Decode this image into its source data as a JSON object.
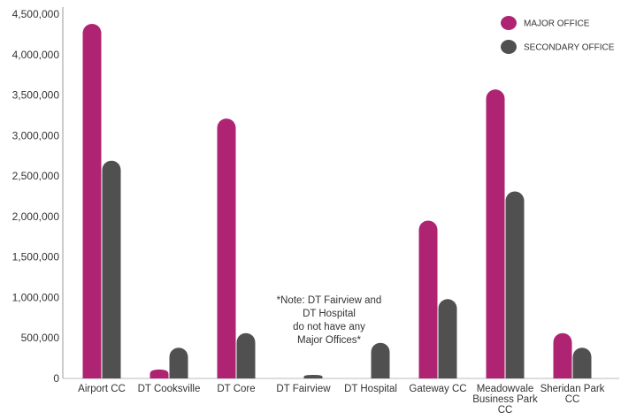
{
  "chart_data": {
    "type": "bar",
    "categories": [
      [
        "Airport CC"
      ],
      [
        "DT Cooksville"
      ],
      [
        "DT Core"
      ],
      [
        "DT Fairview"
      ],
      [
        "DT Hospital"
      ],
      [
        "Gateway CC"
      ],
      [
        "Meadowvale",
        "Business Park",
        "CC"
      ],
      [
        "Sheridan Park",
        "CC"
      ]
    ],
    "series": [
      {
        "name": "MAJOR OFFICE",
        "color": "#ae2473",
        "values": [
          4380000,
          110000,
          3210000,
          0,
          0,
          1950000,
          3570000,
          560000
        ]
      },
      {
        "name": "SECONDARY OFFICE",
        "color": "#505050",
        "values": [
          2690000,
          380000,
          560000,
          20000,
          440000,
          980000,
          2310000,
          380000
        ]
      }
    ],
    "ylim": [
      0,
      4500000
    ],
    "yticks": [
      {
        "value": 0,
        "label": "0"
      },
      {
        "value": 500000,
        "label": "500,000"
      },
      {
        "value": 1000000,
        "label": "1,000,000"
      },
      {
        "value": 1500000,
        "label": "1,500,000"
      },
      {
        "value": 2000000,
        "label": "2,000,000"
      },
      {
        "value": 2500000,
        "label": "2,500,000"
      },
      {
        "value": 3000000,
        "label": "3,000,000"
      },
      {
        "value": 3500000,
        "label": "3,500,000"
      },
      {
        "value": 4000000,
        "label": "4,000,000"
      },
      {
        "value": 4500000,
        "label": "4,500,000"
      }
    ],
    "grid": false,
    "legend_position": "top-right",
    "annotation": [
      "*Note: DT Fairview and",
      "DT Hospital",
      "do not have any",
      "Major Offices*"
    ]
  }
}
